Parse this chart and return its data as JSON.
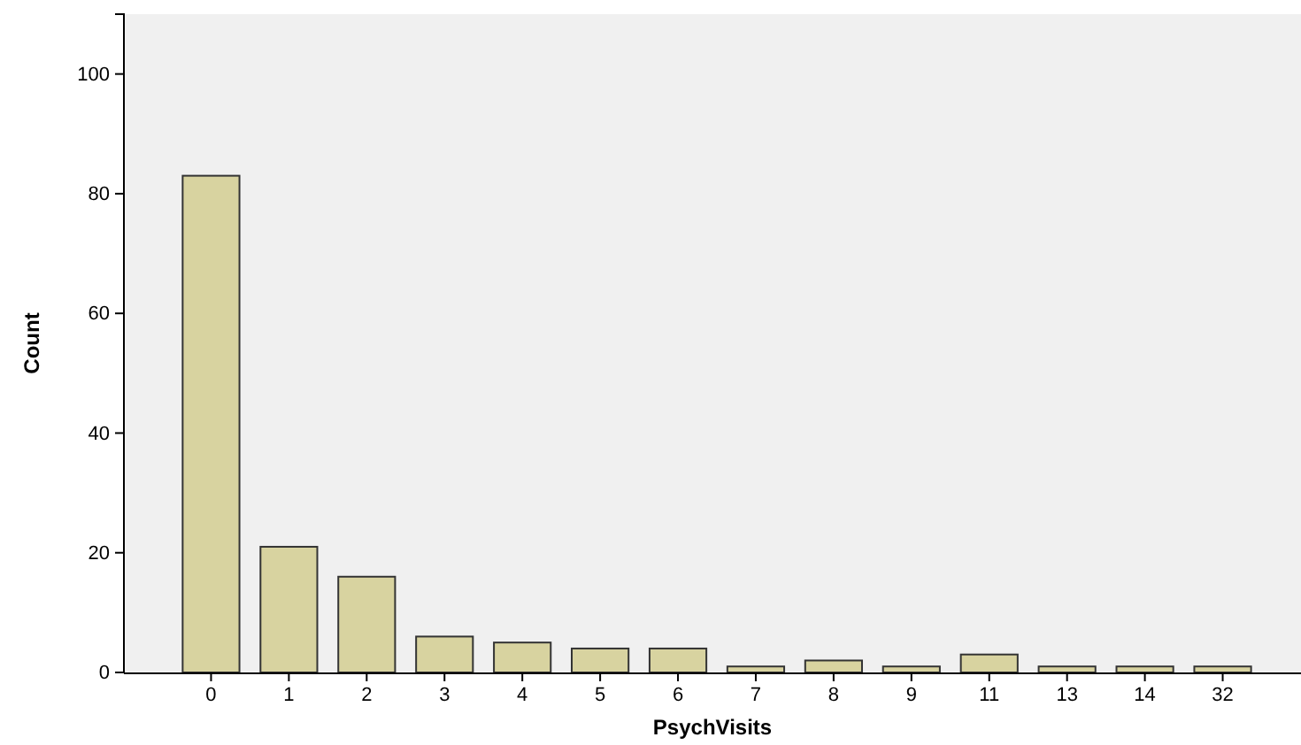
{
  "chart_data": {
    "type": "bar",
    "xlabel": "PsychVisits",
    "ylabel": "Count",
    "categories": [
      "0",
      "1",
      "2",
      "3",
      "4",
      "5",
      "6",
      "7",
      "8",
      "9",
      "11",
      "13",
      "14",
      "32"
    ],
    "values": [
      83,
      21,
      16,
      6,
      5,
      4,
      4,
      1,
      2,
      1,
      3,
      1,
      1,
      1
    ],
    "color": "#d8d3a0",
    "ylim": [
      0,
      110
    ],
    "yticks": [
      0,
      20,
      40,
      60,
      80,
      100
    ],
    "grid": false
  }
}
